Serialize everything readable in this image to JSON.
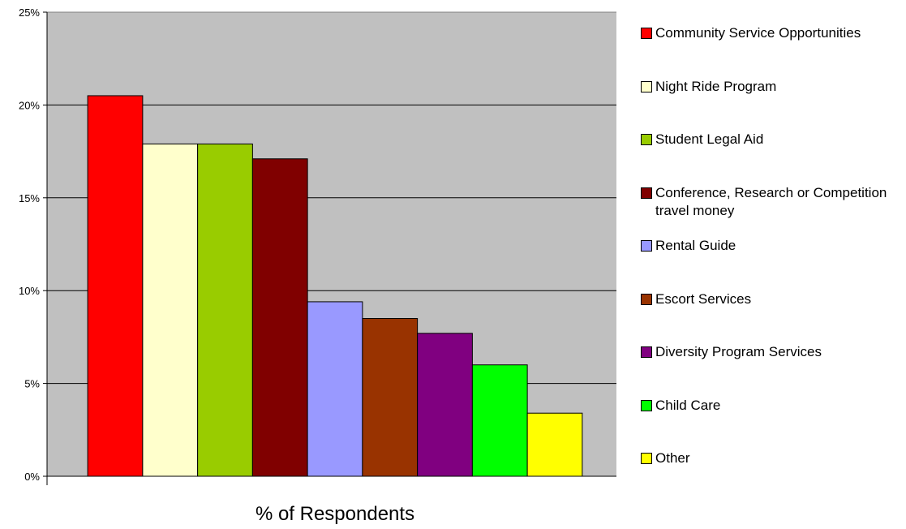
{
  "chart_data": {
    "type": "bar",
    "xlabel": "% of Respondents",
    "ylabel": "",
    "ylim": [
      0,
      25
    ],
    "yticks": [
      "0%",
      "5%",
      "10%",
      "15%",
      "20%",
      "25%"
    ],
    "grid": true,
    "legend_position": "right",
    "plot_background": "#c0c0c0",
    "series": [
      {
        "name": "Community Service Opportunities",
        "value": 20.5,
        "color": "#ff0000"
      },
      {
        "name": "Night Ride Program",
        "value": 17.9,
        "color": "#ffffcc"
      },
      {
        "name": "Student Legal Aid",
        "value": 17.9,
        "color": "#99cc00"
      },
      {
        "name": "Conference, Research or Competition travel money",
        "value": 17.1,
        "color": "#800000"
      },
      {
        "name": "Rental Guide",
        "value": 9.4,
        "color": "#9999ff"
      },
      {
        "name": "Escort Services",
        "value": 8.5,
        "color": "#993300"
      },
      {
        "name": "Diversity Program Services",
        "value": 7.7,
        "color": "#800080"
      },
      {
        "name": "Child Care",
        "value": 6.0,
        "color": "#00ff00"
      },
      {
        "name": "Other",
        "value": 3.4,
        "color": "#ffff00"
      }
    ]
  }
}
